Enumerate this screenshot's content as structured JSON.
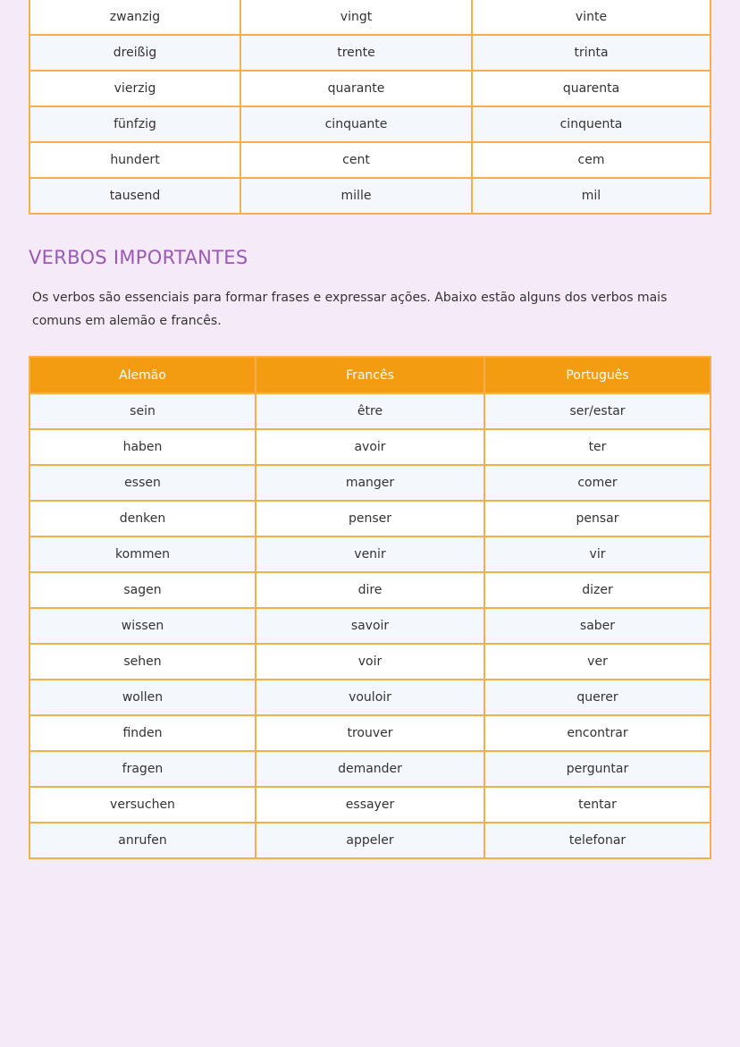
{
  "numbers_table": {
    "rows": [
      [
        "zwanzig",
        "vingt",
        "vinte"
      ],
      [
        "dreißig",
        "trente",
        "trinta"
      ],
      [
        "vierzig",
        "quarante",
        "quarenta"
      ],
      [
        "fünfzig",
        "cinquante",
        "cinquenta"
      ],
      [
        "hundert",
        "cent",
        "cem"
      ],
      [
        "tausend",
        "mille",
        "mil"
      ]
    ]
  },
  "verbs_section": {
    "title": "VERBOS IMPORTANTES",
    "intro": "Os verbos são essenciais para formar frases e expressar ações. Abaixo estão alguns dos verbos mais comuns em alemão e francês.",
    "headers": [
      "Alemão",
      "Francês",
      "Português"
    ],
    "rows": [
      [
        "sein",
        "être",
        "ser/estar"
      ],
      [
        "haben",
        "avoir",
        "ter"
      ],
      [
        "essen",
        "manger",
        "comer"
      ],
      [
        "denken",
        "penser",
        "pensar"
      ],
      [
        "kommen",
        "venir",
        "vir"
      ],
      [
        "sagen",
        "dire",
        "dizer"
      ],
      [
        "wissen",
        "savoir",
        "saber"
      ],
      [
        "sehen",
        "voir",
        "ver"
      ],
      [
        "wollen",
        "vouloir",
        "querer"
      ],
      [
        "finden",
        "trouver",
        "encontrar"
      ],
      [
        "fragen",
        "demander",
        "perguntar"
      ],
      [
        "versuchen",
        "essayer",
        "tentar"
      ],
      [
        "anrufen",
        "appeler",
        "telefonar"
      ]
    ]
  },
  "colors": {
    "background": "#f5eaf8",
    "header": "#f39c12",
    "border": "#f5b04a",
    "title": "#9b59b6"
  }
}
